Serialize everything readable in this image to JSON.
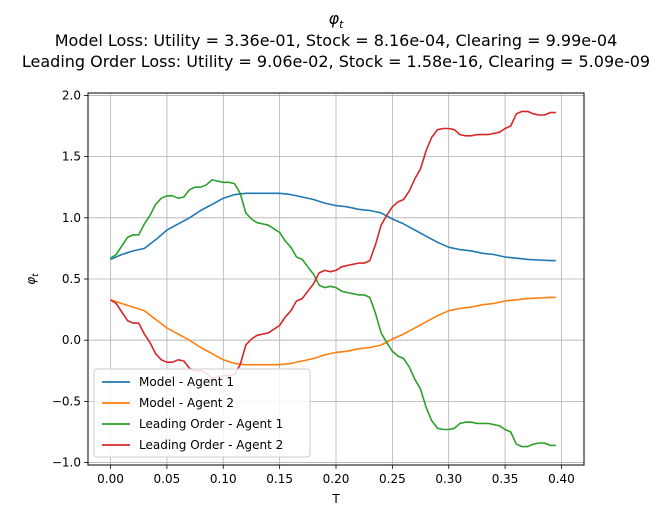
{
  "chart_data": {
    "type": "line",
    "title_symbol": "φ",
    "title_subscript": "t",
    "subtitle_lines": [
      "Model Loss: Utility = 3.36e-01, Stock = 8.16e-04, Clearing = 9.99e-04",
      "Leading Order Loss: Utility = 9.06e-02, Stock = 1.58e-16, Clearing = 5.09e-09"
    ],
    "xlabel": "T",
    "ylabel_symbol": "φ",
    "ylabel_subscript": "t",
    "xlim": [
      -0.02,
      0.42
    ],
    "ylim": [
      -1.02,
      2.02
    ],
    "xticks": [
      0.0,
      0.05,
      0.1,
      0.15,
      0.2,
      0.25,
      0.3,
      0.35,
      0.4
    ],
    "xtick_labels": [
      "0.00",
      "0.05",
      "0.10",
      "0.15",
      "0.20",
      "0.25",
      "0.30",
      "0.35",
      "0.40"
    ],
    "yticks": [
      -1.0,
      -0.5,
      0.0,
      0.5,
      1.0,
      1.5,
      2.0
    ],
    "ytick_labels": [
      "−1.0",
      "−0.5",
      "0.0",
      "0.5",
      "1.0",
      "1.5",
      "2.0"
    ],
    "grid": true,
    "legend_position": "lower-left",
    "series": [
      {
        "name": "Model - Agent 1",
        "color": "#1f77b4",
        "x": [
          0.0,
          0.01,
          0.02,
          0.03,
          0.04,
          0.05,
          0.06,
          0.07,
          0.08,
          0.09,
          0.1,
          0.11,
          0.12,
          0.13,
          0.14,
          0.15,
          0.16,
          0.17,
          0.18,
          0.19,
          0.2,
          0.21,
          0.22,
          0.23,
          0.24,
          0.25,
          0.26,
          0.27,
          0.28,
          0.29,
          0.3,
          0.31,
          0.32,
          0.33,
          0.34,
          0.35,
          0.36,
          0.37,
          0.38,
          0.39,
          0.395
        ],
        "y": [
          0.66,
          0.7,
          0.73,
          0.75,
          0.82,
          0.9,
          0.95,
          1.0,
          1.06,
          1.11,
          1.16,
          1.19,
          1.2,
          1.2,
          1.2,
          1.2,
          1.19,
          1.17,
          1.15,
          1.12,
          1.1,
          1.09,
          1.07,
          1.06,
          1.04,
          0.99,
          0.95,
          0.9,
          0.85,
          0.8,
          0.76,
          0.74,
          0.73,
          0.71,
          0.7,
          0.68,
          0.67,
          0.66,
          0.655,
          0.65,
          0.65
        ]
      },
      {
        "name": "Model - Agent 2",
        "color": "#ff7f0e",
        "x": [
          0.0,
          0.01,
          0.02,
          0.03,
          0.04,
          0.05,
          0.06,
          0.07,
          0.08,
          0.09,
          0.1,
          0.11,
          0.12,
          0.13,
          0.14,
          0.15,
          0.16,
          0.17,
          0.18,
          0.19,
          0.2,
          0.21,
          0.22,
          0.23,
          0.24,
          0.25,
          0.26,
          0.27,
          0.28,
          0.29,
          0.3,
          0.31,
          0.32,
          0.33,
          0.34,
          0.35,
          0.36,
          0.37,
          0.38,
          0.39,
          0.395
        ],
        "y": [
          0.33,
          0.3,
          0.27,
          0.24,
          0.17,
          0.1,
          0.05,
          0.0,
          -0.06,
          -0.11,
          -0.16,
          -0.19,
          -0.2,
          -0.2,
          -0.2,
          -0.2,
          -0.19,
          -0.17,
          -0.15,
          -0.12,
          -0.1,
          -0.09,
          -0.07,
          -0.06,
          -0.04,
          0.01,
          0.05,
          0.1,
          0.15,
          0.2,
          0.24,
          0.26,
          0.27,
          0.29,
          0.3,
          0.32,
          0.33,
          0.34,
          0.345,
          0.35,
          0.35
        ]
      },
      {
        "name": "Leading Order - Agent 1",
        "color": "#2ca02c",
        "x": [
          0.0,
          0.005,
          0.01,
          0.015,
          0.02,
          0.025,
          0.03,
          0.035,
          0.04,
          0.045,
          0.05,
          0.055,
          0.06,
          0.065,
          0.07,
          0.075,
          0.08,
          0.085,
          0.09,
          0.095,
          0.1,
          0.105,
          0.11,
          0.115,
          0.12,
          0.125,
          0.13,
          0.135,
          0.14,
          0.145,
          0.15,
          0.155,
          0.16,
          0.165,
          0.17,
          0.175,
          0.18,
          0.185,
          0.19,
          0.195,
          0.2,
          0.205,
          0.21,
          0.215,
          0.22,
          0.225,
          0.23,
          0.235,
          0.24,
          0.245,
          0.25,
          0.255,
          0.26,
          0.265,
          0.27,
          0.275,
          0.28,
          0.285,
          0.29,
          0.295,
          0.3,
          0.305,
          0.31,
          0.315,
          0.32,
          0.325,
          0.33,
          0.335,
          0.34,
          0.345,
          0.35,
          0.355,
          0.36,
          0.365,
          0.37,
          0.375,
          0.38,
          0.385,
          0.39,
          0.395
        ],
        "y": [
          0.67,
          0.7,
          0.77,
          0.84,
          0.86,
          0.86,
          0.95,
          1.02,
          1.11,
          1.16,
          1.18,
          1.18,
          1.16,
          1.17,
          1.23,
          1.25,
          1.25,
          1.27,
          1.31,
          1.3,
          1.29,
          1.29,
          1.28,
          1.2,
          1.04,
          0.99,
          0.96,
          0.95,
          0.94,
          0.91,
          0.88,
          0.81,
          0.76,
          0.68,
          0.66,
          0.6,
          0.54,
          0.45,
          0.43,
          0.44,
          0.43,
          0.4,
          0.39,
          0.38,
          0.37,
          0.37,
          0.35,
          0.22,
          0.06,
          -0.02,
          -0.09,
          -0.13,
          -0.15,
          -0.22,
          -0.32,
          -0.4,
          -0.55,
          -0.66,
          -0.72,
          -0.73,
          -0.73,
          -0.72,
          -0.68,
          -0.67,
          -0.67,
          -0.68,
          -0.68,
          -0.68,
          -0.69,
          -0.7,
          -0.73,
          -0.75,
          -0.85,
          -0.87,
          -0.87,
          -0.85,
          -0.84,
          -0.84,
          -0.86,
          -0.86
        ]
      },
      {
        "name": "Leading Order - Agent 2",
        "color": "#d62728",
        "x": [
          0.0,
          0.005,
          0.01,
          0.015,
          0.02,
          0.025,
          0.03,
          0.035,
          0.04,
          0.045,
          0.05,
          0.055,
          0.06,
          0.065,
          0.07,
          0.075,
          0.08,
          0.085,
          0.09,
          0.095,
          0.1,
          0.105,
          0.11,
          0.115,
          0.12,
          0.125,
          0.13,
          0.135,
          0.14,
          0.145,
          0.15,
          0.155,
          0.16,
          0.165,
          0.17,
          0.175,
          0.18,
          0.185,
          0.19,
          0.195,
          0.2,
          0.205,
          0.21,
          0.215,
          0.22,
          0.225,
          0.23,
          0.235,
          0.24,
          0.245,
          0.25,
          0.255,
          0.26,
          0.265,
          0.27,
          0.275,
          0.28,
          0.285,
          0.29,
          0.295,
          0.3,
          0.305,
          0.31,
          0.315,
          0.32,
          0.325,
          0.33,
          0.335,
          0.34,
          0.345,
          0.35,
          0.355,
          0.36,
          0.365,
          0.37,
          0.375,
          0.38,
          0.385,
          0.39,
          0.395
        ],
        "y": [
          0.33,
          0.3,
          0.23,
          0.16,
          0.14,
          0.14,
          0.05,
          -0.02,
          -0.11,
          -0.16,
          -0.18,
          -0.18,
          -0.16,
          -0.17,
          -0.23,
          -0.25,
          -0.25,
          -0.27,
          -0.31,
          -0.3,
          -0.29,
          -0.29,
          -0.28,
          -0.2,
          -0.04,
          0.01,
          0.04,
          0.05,
          0.06,
          0.09,
          0.12,
          0.19,
          0.24,
          0.32,
          0.34,
          0.4,
          0.46,
          0.55,
          0.57,
          0.56,
          0.57,
          0.6,
          0.61,
          0.62,
          0.63,
          0.63,
          0.65,
          0.78,
          0.94,
          1.02,
          1.09,
          1.13,
          1.15,
          1.22,
          1.32,
          1.4,
          1.55,
          1.66,
          1.72,
          1.73,
          1.73,
          1.72,
          1.68,
          1.67,
          1.67,
          1.68,
          1.68,
          1.68,
          1.69,
          1.7,
          1.73,
          1.75,
          1.85,
          1.87,
          1.87,
          1.85,
          1.84,
          1.84,
          1.86,
          1.86
        ]
      }
    ]
  }
}
